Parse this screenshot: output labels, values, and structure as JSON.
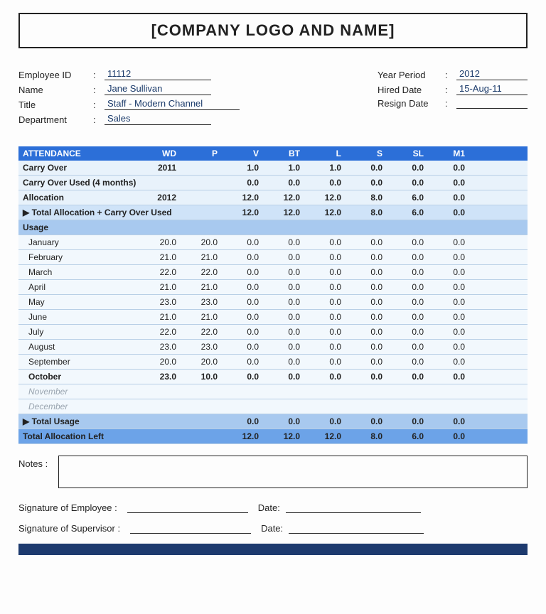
{
  "header": {
    "title": "[COMPANY LOGO AND NAME]"
  },
  "employee": {
    "id_label": "Employee ID",
    "id": "11112",
    "name_label": "Name",
    "name": "Jane Sullivan",
    "title_label": "Title",
    "title": "Staff - Modern Channel",
    "dept_label": "Department",
    "dept": "Sales"
  },
  "period": {
    "year_label": "Year Period",
    "year": "2012",
    "hired_label": "Hired Date",
    "hired": "15-Aug-11",
    "resign_label": "Resign Date",
    "resign": ""
  },
  "att": {
    "header": "ATTENDANCE",
    "cols": {
      "wd": "WD",
      "p": "P",
      "v": "V",
      "bt": "BT",
      "l": "L",
      "s": "S",
      "sl": "SL",
      "m1": "M1"
    },
    "carry_over": {
      "label": "Carry Over",
      "year": "2011",
      "v": "1.0",
      "bt": "1.0",
      "l": "1.0",
      "s": "0.0",
      "sl": "0.0",
      "m1": "0.0"
    },
    "carry_used": {
      "label": "Carry Over Used (4 months)",
      "v": "0.0",
      "bt": "0.0",
      "l": "0.0",
      "s": "0.0",
      "sl": "0.0",
      "m1": "0.0"
    },
    "allocation": {
      "label": "Allocation",
      "year": "2012",
      "v": "12.0",
      "bt": "12.0",
      "l": "12.0",
      "s": "8.0",
      "sl": "6.0",
      "m1": "0.0"
    },
    "total_alloc": {
      "label": "▶ Total Allocation + Carry Over Used",
      "v": "12.0",
      "bt": "12.0",
      "l": "12.0",
      "s": "8.0",
      "sl": "6.0",
      "m1": "0.0"
    },
    "usage_label": "Usage",
    "months": {
      "jan": {
        "name": "January",
        "wd": "20.0",
        "p": "20.0",
        "v": "0.0",
        "bt": "0.0",
        "l": "0.0",
        "s": "0.0",
        "sl": "0.0",
        "m1": "0.0"
      },
      "feb": {
        "name": "February",
        "wd": "21.0",
        "p": "21.0",
        "v": "0.0",
        "bt": "0.0",
        "l": "0.0",
        "s": "0.0",
        "sl": "0.0",
        "m1": "0.0"
      },
      "mar": {
        "name": "March",
        "wd": "22.0",
        "p": "22.0",
        "v": "0.0",
        "bt": "0.0",
        "l": "0.0",
        "s": "0.0",
        "sl": "0.0",
        "m1": "0.0"
      },
      "apr": {
        "name": "April",
        "wd": "21.0",
        "p": "21.0",
        "v": "0.0",
        "bt": "0.0",
        "l": "0.0",
        "s": "0.0",
        "sl": "0.0",
        "m1": "0.0"
      },
      "may": {
        "name": "May",
        "wd": "23.0",
        "p": "23.0",
        "v": "0.0",
        "bt": "0.0",
        "l": "0.0",
        "s": "0.0",
        "sl": "0.0",
        "m1": "0.0"
      },
      "jun": {
        "name": "June",
        "wd": "21.0",
        "p": "21.0",
        "v": "0.0",
        "bt": "0.0",
        "l": "0.0",
        "s": "0.0",
        "sl": "0.0",
        "m1": "0.0"
      },
      "jul": {
        "name": "July",
        "wd": "22.0",
        "p": "22.0",
        "v": "0.0",
        "bt": "0.0",
        "l": "0.0",
        "s": "0.0",
        "sl": "0.0",
        "m1": "0.0"
      },
      "aug": {
        "name": "August",
        "wd": "23.0",
        "p": "23.0",
        "v": "0.0",
        "bt": "0.0",
        "l": "0.0",
        "s": "0.0",
        "sl": "0.0",
        "m1": "0.0"
      },
      "sep": {
        "name": "September",
        "wd": "20.0",
        "p": "20.0",
        "v": "0.0",
        "bt": "0.0",
        "l": "0.0",
        "s": "0.0",
        "sl": "0.0",
        "m1": "0.0"
      },
      "oct": {
        "name": "October",
        "wd": "23.0",
        "p": "10.0",
        "v": "0.0",
        "bt": "0.0",
        "l": "0.0",
        "s": "0.0",
        "sl": "0.0",
        "m1": "0.0"
      },
      "nov": {
        "name": "November"
      },
      "dec": {
        "name": "December"
      }
    },
    "total_usage": {
      "label": "▶ Total Usage",
      "v": "0.0",
      "bt": "0.0",
      "l": "0.0",
      "s": "0.0",
      "sl": "0.0",
      "m1": "0.0"
    },
    "total_left": {
      "label": "Total Allocation Left",
      "v": "12.0",
      "bt": "12.0",
      "l": "12.0",
      "s": "8.0",
      "sl": "6.0",
      "m1": "0.0"
    }
  },
  "notes": {
    "label": "Notes :"
  },
  "sign": {
    "emp_label": "Signature of Employee :",
    "sup_label": "Signature of Supervisor :",
    "date_label": "Date:"
  },
  "colors": {
    "header_blue": "#2c6fd8",
    "band_mid": "#a8c9ef",
    "band_strong": "#6ca3e8",
    "footer": "#1d3a6e"
  }
}
